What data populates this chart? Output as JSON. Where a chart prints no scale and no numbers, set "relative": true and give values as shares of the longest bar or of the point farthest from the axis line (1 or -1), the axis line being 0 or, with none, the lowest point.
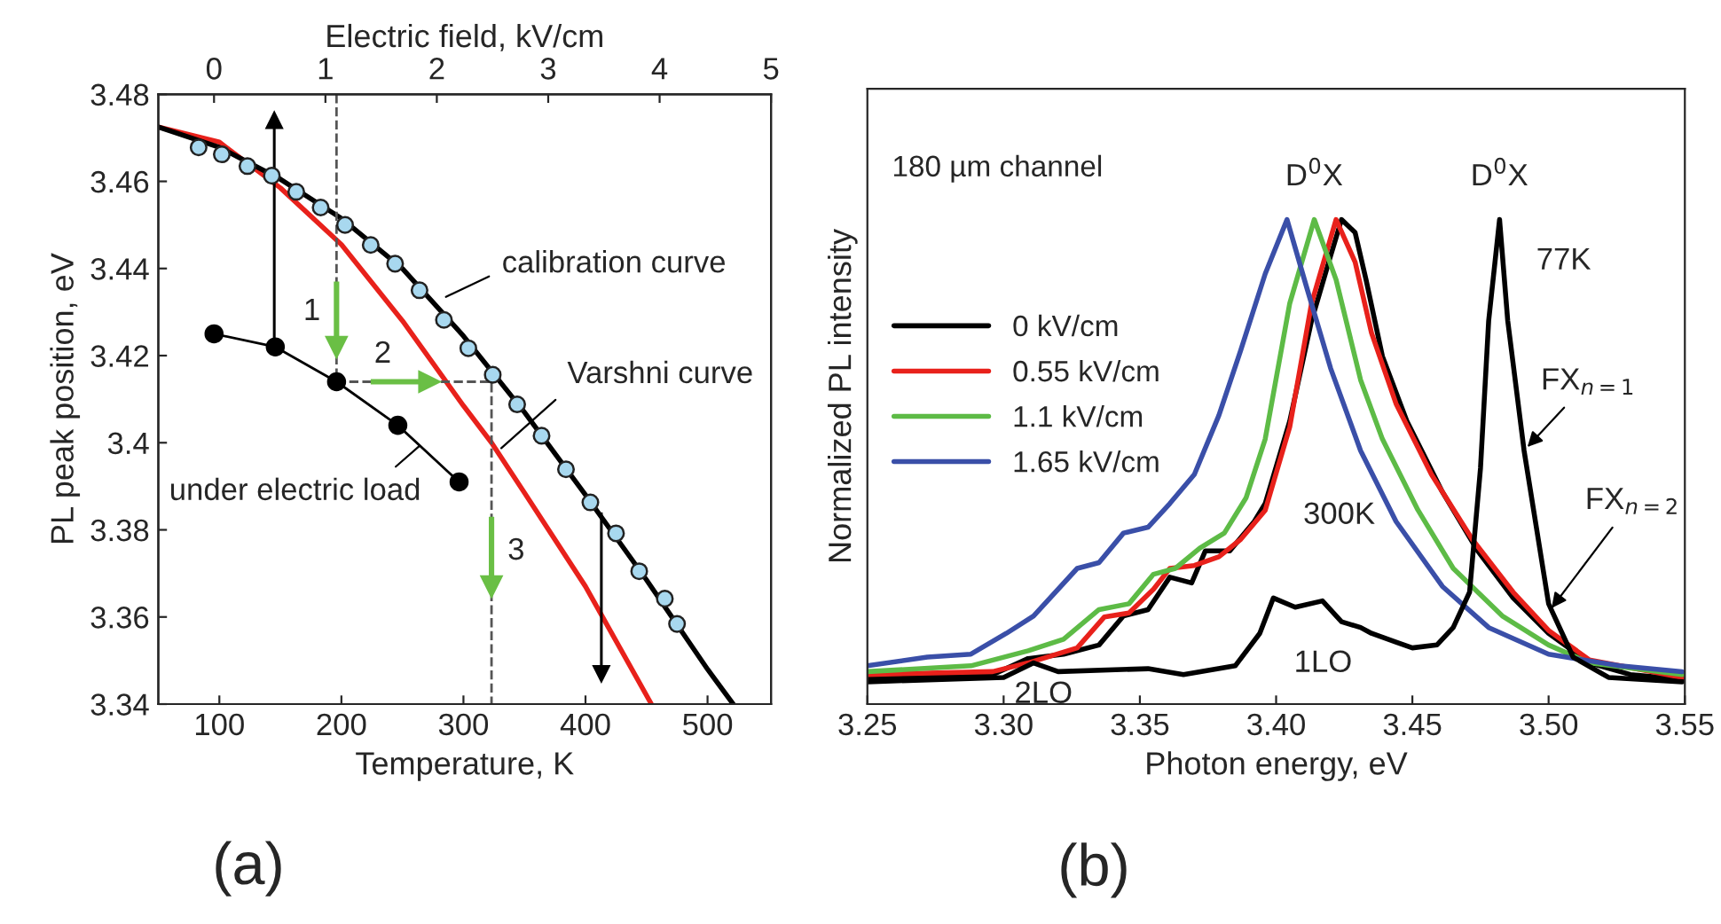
{
  "chart_data": [
    {
      "type": "line",
      "xlabel": "Temperature, K",
      "ylabel": "PL peak position, eV",
      "x2label": "Electric field, kV/cm",
      "xlim": [
        50,
        552
      ],
      "xticks": [
        100,
        200,
        300,
        400,
        500
      ],
      "x2lim": [
        -0.5,
        5.0
      ],
      "x2ticks": [
        0,
        1,
        2,
        3,
        4,
        5
      ],
      "ylim": [
        3.34,
        3.48
      ],
      "yticks": [
        3.34,
        3.36,
        3.38,
        3.4,
        3.42,
        3.44,
        3.46,
        3.48
      ],
      "series": [
        {
          "type": "line",
          "color": "#e8211b",
          "x": [
            50,
            100,
            150,
            200,
            250,
            300,
            323,
            350,
            400,
            454
          ],
          "values": [
            3.4725,
            3.469,
            3.4585,
            3.4455,
            3.428,
            3.4085,
            3.4,
            3.3885,
            3.367,
            3.34
          ]
        },
        {
          "type": "line",
          "color": "#000000",
          "x": [
            50,
            100,
            150,
            200,
            250,
            300,
            350,
            400,
            450,
            500,
            521
          ],
          "values": [
            3.4725,
            3.4678,
            3.4605,
            3.4515,
            3.44,
            3.4245,
            3.407,
            3.388,
            3.3685,
            3.348,
            3.34
          ]
        },
        {
          "type": "scatter",
          "color": "#a8d8ef",
          "marker": "circle",
          "x": [
            83,
            102,
            123,
            143,
            163,
            183,
            203,
            224,
            244,
            264,
            284,
            304,
            324,
            344,
            364,
            384,
            404,
            425,
            444,
            465,
            475
          ],
          "values": [
            3.4678,
            3.4662,
            3.4635,
            3.4613,
            3.4576,
            3.454,
            3.45,
            3.4454,
            3.4411,
            3.435,
            3.4282,
            3.4217,
            3.4156,
            3.4088,
            3.4016,
            3.3939,
            3.3863,
            3.3792,
            3.3705,
            3.3642,
            3.3584
          ]
        },
        {
          "type": "line",
          "color": "#000000",
          "marker": "circle",
          "axis": "x2",
          "x": [
            0,
            0.55,
            1.1,
            1.65,
            2.2
          ],
          "values": [
            3.425,
            3.422,
            3.414,
            3.404,
            3.391
          ]
        },
        {
          "type": "line",
          "color": "#555555",
          "line_style": "dashed",
          "x": [
            196,
            196,
            323,
            323
          ],
          "values": [
            3.48,
            3.414,
            3.414,
            3.34
          ]
        },
        {
          "type": "line",
          "color": "#000000",
          "marker": "triangle",
          "x": [
            145,
            145
          ],
          "values": [
            3.422,
            3.474
          ]
        },
        {
          "type": "line",
          "color": "#000000",
          "marker": "triangle",
          "x": [
            413,
            413
          ],
          "values": [
            3.384,
            3.347
          ]
        },
        {
          "type": "line",
          "color": "#6abf45",
          "marker": "triangle",
          "x": [
            196,
            196
          ],
          "values": [
            3.437,
            3.422
          ]
        },
        {
          "type": "line",
          "color": "#6abf45",
          "marker": "triangle",
          "x": [
            224,
            272
          ],
          "values": [
            3.414,
            3.414
          ]
        },
        {
          "type": "line",
          "color": "#6abf45",
          "marker": "triangle",
          "x": [
            323,
            323
          ],
          "values": [
            3.383,
            3.367
          ]
        }
      ],
      "annotations": [
        {
          "text": "calibration curve",
          "x": 282,
          "y": 3.433
        },
        {
          "text": "Varshni curve",
          "x": 328,
          "y": 3.398
        },
        {
          "text": "under electric load",
          "x": 267,
          "y": 3.4
        },
        {
          "text": "1",
          "x": 196,
          "y": 3.43
        },
        {
          "text": "2",
          "x": 248,
          "y": 3.414
        },
        {
          "text": "3",
          "x": 323,
          "y": 3.375
        },
        "(a)"
      ]
    },
    {
      "type": "line",
      "xlabel": "Photon energy, eV",
      "ylabel": "Normalized PL intensity",
      "relative": true,
      "xlim": [
        3.25,
        3.55
      ],
      "xticks": [
        {
          "value": 3.25,
          "label": "3.25"
        },
        {
          "value": 3.3,
          "label": "3.30"
        },
        {
          "value": 3.35,
          "label": "3.35"
        },
        {
          "value": 3.4,
          "label": "3.40"
        },
        {
          "value": 3.45,
          "label": "3.45"
        },
        {
          "value": 3.5,
          "label": "3.50"
        },
        {
          "value": 3.55,
          "label": "3.55"
        }
      ],
      "legend": "left",
      "series": [
        {
          "name": "0 kV/cm",
          "color": "#000000",
          "x": [
            3.25,
            3.296,
            3.309,
            3.322,
            3.335,
            3.344,
            3.353,
            3.361,
            3.369,
            3.374,
            3.383,
            3.392,
            3.396,
            3.405,
            3.413,
            3.42,
            3.424,
            3.429,
            3.433,
            3.439,
            3.448,
            3.461,
            3.474,
            3.487,
            3.5,
            3.515,
            3.53,
            3.549
          ],
          "values": [
            0.055,
            0.061,
            0.094,
            0.103,
            0.122,
            0.182,
            0.195,
            0.262,
            0.25,
            0.316,
            0.316,
            0.377,
            0.414,
            0.584,
            0.791,
            0.925,
            1.0,
            0.973,
            0.876,
            0.718,
            0.584,
            0.438,
            0.316,
            0.219,
            0.146,
            0.085,
            0.061,
            0.051
          ]
        },
        {
          "name": "0.55 kV/cm",
          "color": "#e8211b",
          "x": [
            3.25,
            3.296,
            3.309,
            3.327,
            3.337,
            3.346,
            3.355,
            3.361,
            3.37,
            3.379,
            3.387,
            3.396,
            3.405,
            3.413,
            3.422,
            3.429,
            3.435,
            3.444,
            3.457,
            3.472,
            3.487,
            3.5,
            3.515,
            3.549
          ],
          "values": [
            0.061,
            0.067,
            0.085,
            0.116,
            0.18,
            0.188,
            0.237,
            0.28,
            0.286,
            0.304,
            0.34,
            0.4,
            0.572,
            0.827,
            1.0,
            0.912,
            0.766,
            0.62,
            0.474,
            0.34,
            0.231,
            0.152,
            0.091,
            0.055
          ]
        },
        {
          "name": "1.1 kV/cm",
          "color": "#5dbb46",
          "x": [
            3.25,
            3.288,
            3.309,
            3.322,
            3.335,
            3.346,
            3.355,
            3.363,
            3.372,
            3.381,
            3.389,
            3.396,
            3.405,
            3.414,
            3.422,
            3.431,
            3.439,
            3.452,
            3.465,
            3.483,
            3.5,
            3.515,
            3.549
          ],
          "values": [
            0.067,
            0.079,
            0.11,
            0.134,
            0.195,
            0.207,
            0.268,
            0.28,
            0.322,
            0.353,
            0.426,
            0.547,
            0.827,
            1.0,
            0.876,
            0.669,
            0.547,
            0.401,
            0.28,
            0.182,
            0.122,
            0.085,
            0.061
          ]
        },
        {
          "name": "1.65 kV/cm",
          "color": "#3a4fa8",
          "x": [
            3.25,
            3.272,
            3.288,
            3.301,
            3.311,
            3.327,
            3.335,
            3.344,
            3.353,
            3.361,
            3.37,
            3.379,
            3.387,
            3.396,
            3.404,
            3.411,
            3.42,
            3.431,
            3.444,
            3.461,
            3.478,
            3.5,
            3.526,
            3.549
          ],
          "values": [
            0.079,
            0.097,
            0.103,
            0.146,
            0.182,
            0.28,
            0.292,
            0.353,
            0.365,
            0.414,
            0.474,
            0.596,
            0.73,
            0.888,
            1.0,
            0.864,
            0.693,
            0.523,
            0.377,
            0.243,
            0.158,
            0.103,
            0.079,
            0.067
          ]
        },
        {
          "color": "#000000",
          "x": [
            3.25,
            3.3,
            3.311,
            3.32,
            3.353,
            3.366,
            3.385,
            3.394,
            3.399,
            3.407,
            3.417,
            3.424,
            3.431,
            3.435,
            3.444,
            3.45,
            3.459,
            3.465,
            3.471,
            3.475,
            3.478,
            3.482,
            3.485,
            3.491,
            3.5,
            3.509,
            3.522,
            3.549
          ],
          "values": [
            0.046,
            0.055,
            0.085,
            0.067,
            0.073,
            0.061,
            0.079,
            0.146,
            0.219,
            0.2,
            0.213,
            0.17,
            0.158,
            0.146,
            0.128,
            0.116,
            0.122,
            0.158,
            0.231,
            0.487,
            0.791,
            1.0,
            0.791,
            0.523,
            0.207,
            0.097,
            0.055,
            0.046
          ]
        }
      ],
      "annotations": [
        "180 µm channel",
        {
          "text": "D$^{0}$X",
          "x": 3.414,
          "y": 1.0
        },
        {
          "text": "D$^{0}$X",
          "x": 3.482,
          "y": 1.0
        },
        {
          "text": "77K",
          "x": 3.482,
          "y": 1.0
        },
        {
          "text": "300K",
          "x": 3.396,
          "y": 0.414
        },
        {
          "text": "1LO",
          "x": 3.41,
          "y": 0.21
        },
        {
          "text": "2LO",
          "x": 3.311,
          "y": 0.085
        },
        {
          "text": "FX$_{n=1}$",
          "x": 3.491,
          "y": 0.523
        },
        {
          "text": "FX$_{n=2}$",
          "x": 3.5,
          "y": 0.19
        },
        "(b)"
      ]
    }
  ]
}
